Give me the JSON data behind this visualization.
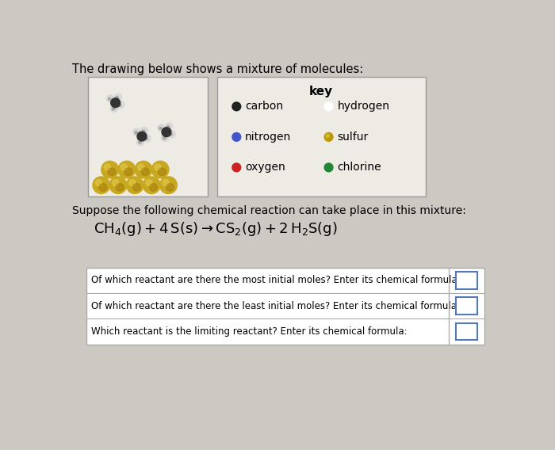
{
  "title": "The drawing below shows a mixture of molecules:",
  "bg_color": "#ccc8c2",
  "key_title": "key",
  "molecule_box_color": "#eeebe5",
  "key_box_color": "#eeebe5",
  "reaction_prefix": "Suppose the following chemical reaction can take place in this mixture:",
  "table_rows": [
    "Of which reactant are there the most initial moles? Enter its chemical formula:",
    "Of which reactant are there the least initial moles? Enter its chemical formula:",
    "Which reactant is the limiting reactant? Enter its chemical formula:"
  ],
  "key_entries": [
    [
      "carbon",
      "#222222",
      "#777777",
      false
    ],
    [
      "hydrogen",
      "#e8e8e8",
      "#aaaaaa",
      false
    ],
    [
      "nitrogen",
      "#4455cc",
      "#2233aa",
      false
    ],
    [
      "sulfur",
      "#bb9900",
      "#886600",
      true
    ],
    [
      "oxygen",
      "#cc2222",
      "#991111",
      false
    ],
    [
      "chlorine",
      "#228833",
      "#116622",
      false
    ]
  ],
  "sulfur_color": "#c8a820",
  "sulfur_edge": "#9a7e10",
  "carbon_color": "#333333",
  "hydrogen_color": "#d8d8d8",
  "hydrogen_edge": "#aaaaaa"
}
